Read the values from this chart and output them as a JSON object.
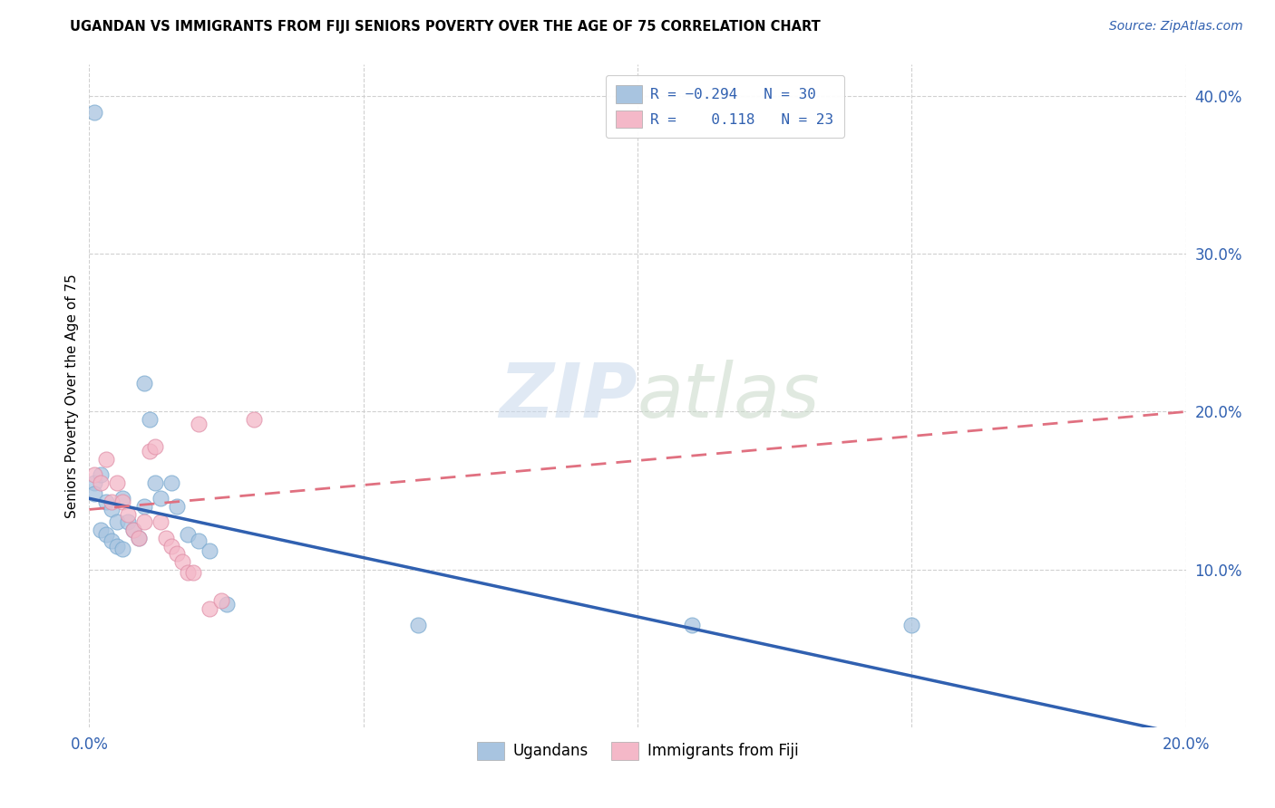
{
  "title": "UGANDAN VS IMMIGRANTS FROM FIJI SENIORS POVERTY OVER THE AGE OF 75 CORRELATION CHART",
  "source": "Source: ZipAtlas.com",
  "ylabel": "Seniors Poverty Over the Age of 75",
  "xlim": [
    0.0,
    0.2
  ],
  "ylim": [
    0.0,
    0.42
  ],
  "xticks": [
    0.0,
    0.05,
    0.1,
    0.15,
    0.2
  ],
  "xtick_labels": [
    "0.0%",
    "",
    "",
    "",
    "20.0%"
  ],
  "yticks": [
    0.1,
    0.2,
    0.3,
    0.4
  ],
  "ytick_labels": [
    "10.0%",
    "20.0%",
    "30.0%",
    "40.0%"
  ],
  "color_ugandan": "#a8c4e0",
  "color_fiji": "#f4b8c8",
  "color_line_ugandan": "#3060b0",
  "color_line_fiji": "#e07080",
  "ugandan_x": [
    0.001,
    0.001,
    0.002,
    0.002,
    0.003,
    0.003,
    0.004,
    0.004,
    0.005,
    0.005,
    0.006,
    0.006,
    0.007,
    0.008,
    0.009,
    0.01,
    0.01,
    0.011,
    0.012,
    0.013,
    0.015,
    0.016,
    0.018,
    0.02,
    0.022,
    0.025,
    0.06,
    0.11,
    0.15,
    0.001
  ],
  "ugandan_y": [
    0.155,
    0.148,
    0.16,
    0.125,
    0.143,
    0.122,
    0.138,
    0.118,
    0.13,
    0.115,
    0.145,
    0.113,
    0.13,
    0.125,
    0.12,
    0.218,
    0.14,
    0.195,
    0.155,
    0.145,
    0.155,
    0.14,
    0.122,
    0.118,
    0.112,
    0.078,
    0.065,
    0.065,
    0.065,
    0.39
  ],
  "fiji_x": [
    0.001,
    0.002,
    0.003,
    0.004,
    0.005,
    0.006,
    0.007,
    0.008,
    0.009,
    0.01,
    0.011,
    0.012,
    0.013,
    0.014,
    0.015,
    0.016,
    0.017,
    0.018,
    0.019,
    0.02,
    0.022,
    0.024,
    0.03
  ],
  "fiji_y": [
    0.16,
    0.155,
    0.17,
    0.143,
    0.155,
    0.143,
    0.135,
    0.125,
    0.12,
    0.13,
    0.175,
    0.178,
    0.13,
    0.12,
    0.115,
    0.11,
    0.105,
    0.098,
    0.098,
    0.192,
    0.075,
    0.08,
    0.195
  ],
  "ug_line_x0": 0.0,
  "ug_line_x1": 0.2,
  "ug_line_y0": 0.145,
  "ug_line_y1": -0.005,
  "fj_line_x0": 0.0,
  "fj_line_x1": 0.2,
  "fj_line_y0": 0.138,
  "fj_line_y1": 0.2
}
